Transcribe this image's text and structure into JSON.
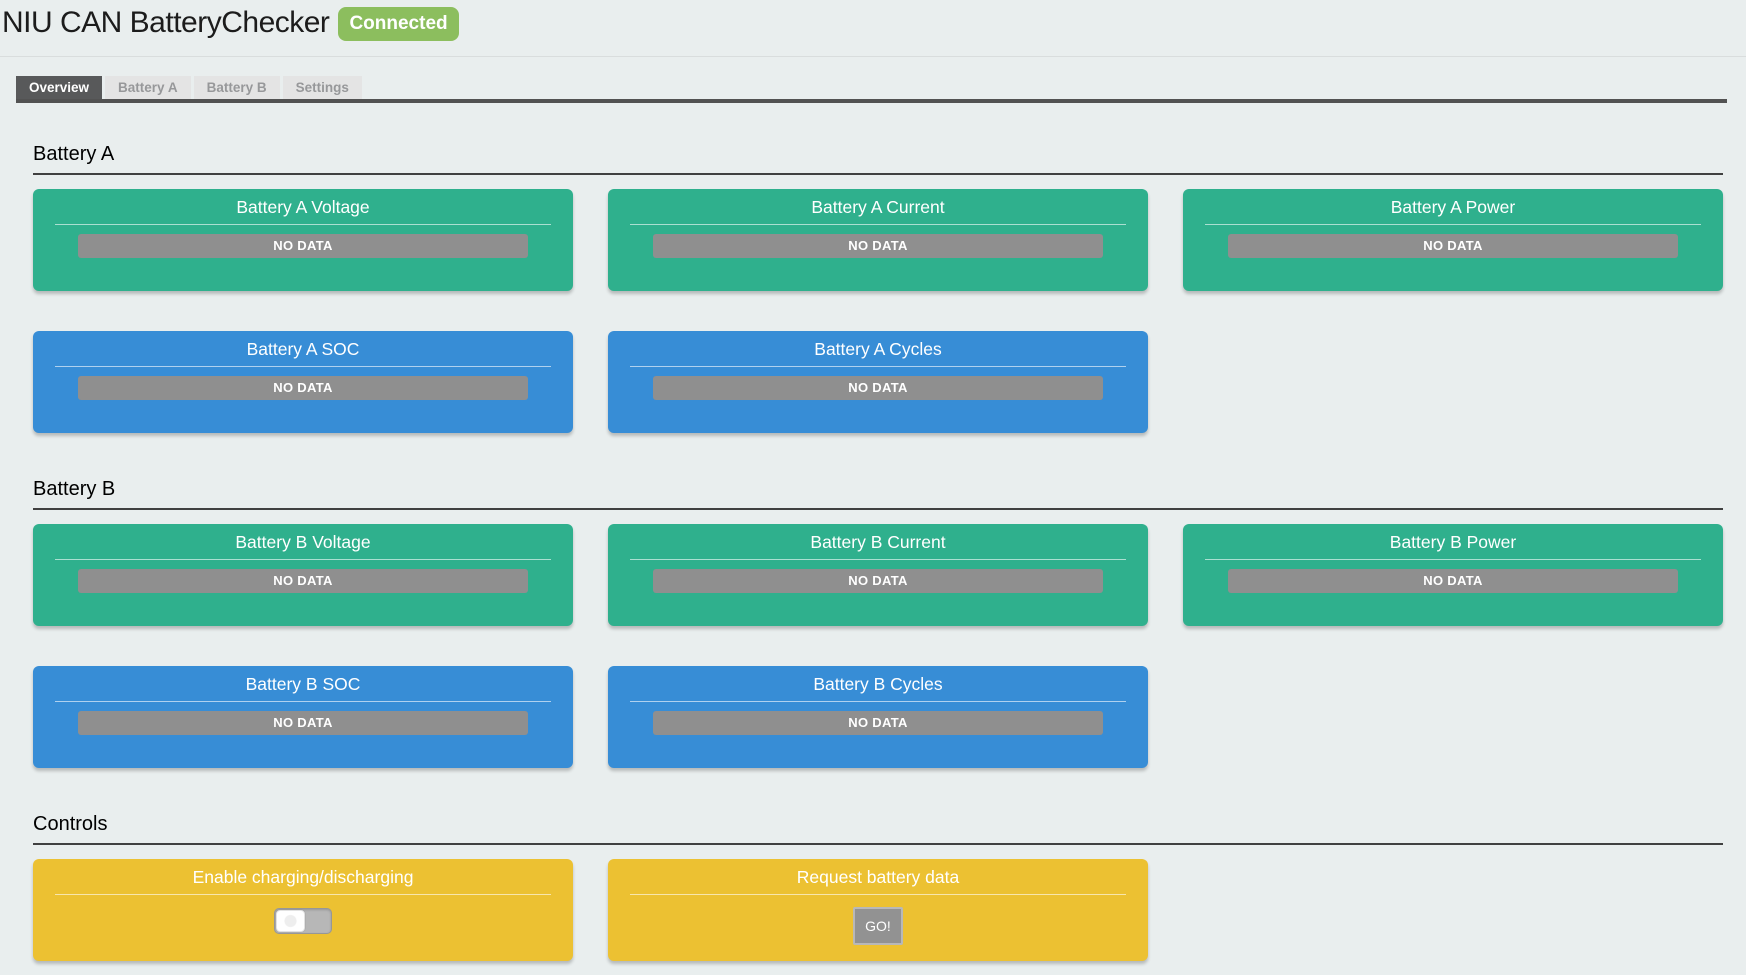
{
  "colors": {
    "page_bg": "#e9eeee",
    "card_green": "#2fb08d",
    "card_blue": "#378dd6",
    "card_yellow": "#ecc132",
    "nodata_gray": "#8f8f8f",
    "badge_green": "#8cbe5e",
    "tab_active_bg": "#58595a",
    "tab_inactive_bg": "#e4e4e4"
  },
  "header": {
    "title": "NIU CAN BatteryChecker",
    "status": "Connected"
  },
  "tabs": [
    {
      "label": "Overview",
      "active": true
    },
    {
      "label": "Battery A",
      "active": false
    },
    {
      "label": "Battery B",
      "active": false
    },
    {
      "label": "Settings",
      "active": false
    }
  ],
  "sections": [
    {
      "heading": "Battery A",
      "cards": [
        {
          "title": "Battery A Voltage",
          "value": "NO DATA",
          "color": "green"
        },
        {
          "title": "Battery A Current",
          "value": "NO DATA",
          "color": "green"
        },
        {
          "title": "Battery A Power",
          "value": "NO DATA",
          "color": "green"
        },
        {
          "title": "Battery A SOC",
          "value": "NO DATA",
          "color": "blue"
        },
        {
          "title": "Battery A Cycles",
          "value": "NO DATA",
          "color": "blue"
        }
      ]
    },
    {
      "heading": "Battery B",
      "cards": [
        {
          "title": "Battery B Voltage",
          "value": "NO DATA",
          "color": "green"
        },
        {
          "title": "Battery B Current",
          "value": "NO DATA",
          "color": "green"
        },
        {
          "title": "Battery B Power",
          "value": "NO DATA",
          "color": "green"
        },
        {
          "title": "Battery B SOC",
          "value": "NO DATA",
          "color": "blue"
        },
        {
          "title": "Battery B Cycles",
          "value": "NO DATA",
          "color": "blue"
        }
      ]
    },
    {
      "heading": "Controls",
      "cards": [
        {
          "title": "Enable charging/discharging",
          "control": "toggle",
          "state": "off",
          "color": "yellow"
        },
        {
          "title": "Request battery data",
          "control": "button",
          "button_label": "GO!",
          "color": "yellow"
        }
      ]
    }
  ]
}
